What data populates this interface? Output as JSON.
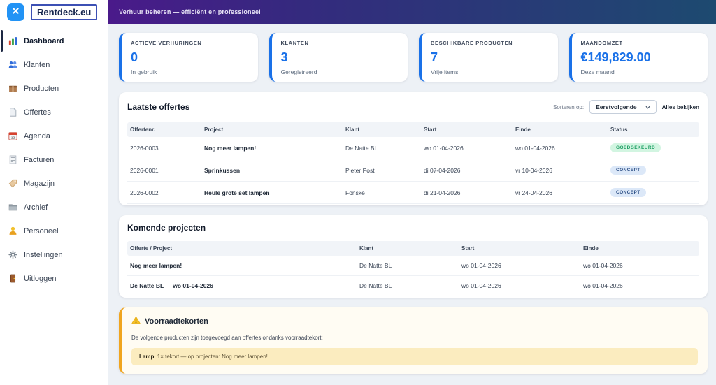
{
  "header": {
    "logo": "Rentdeck.eu",
    "tagline": "Verhuur beheren — efficiënt en professioneel",
    "close_icon": "close-icon"
  },
  "sidebar": {
    "items": [
      {
        "label": "Dashboard",
        "icon": "bar-chart-icon",
        "active": true
      },
      {
        "label": "Klanten",
        "icon": "people-icon"
      },
      {
        "label": "Producten",
        "icon": "package-icon"
      },
      {
        "label": "Offertes",
        "icon": "document-icon"
      },
      {
        "label": "Agenda",
        "icon": "calendar-icon"
      },
      {
        "label": "Facturen",
        "icon": "receipt-icon"
      },
      {
        "label": "Magazijn",
        "icon": "tag-icon"
      },
      {
        "label": "Archief",
        "icon": "folder-icon"
      },
      {
        "label": "Personeel",
        "icon": "person-icon"
      },
      {
        "label": "Instellingen",
        "icon": "gear-icon"
      },
      {
        "label": "Uitloggen",
        "icon": "door-icon"
      }
    ]
  },
  "stats": [
    {
      "label": "ACTIEVE VERHURINGEN",
      "value": "0",
      "sub": "In gebruik"
    },
    {
      "label": "KLANTEN",
      "value": "3",
      "sub": "Geregistreerd"
    },
    {
      "label": "BESCHIKBARE PRODUCTEN",
      "value": "7",
      "sub": "Vrije items"
    },
    {
      "label": "MAANDOMZET",
      "value": "€149,829.00",
      "sub": "Deze maand"
    }
  ],
  "offers": {
    "title": "Laatste offertes",
    "sort_label": "Sorteren op:",
    "sort_value": "Eerstvolgende",
    "view_all": "Alles bekijken",
    "columns": [
      "Offertenr.",
      "Project",
      "Klant",
      "Start",
      "Einde",
      "Status"
    ],
    "rows": [
      {
        "nr": "2026-0003",
        "project": "Nog meer lampen!",
        "klant": "De Natte BL",
        "start": "wo 01-04-2026",
        "einde": "wo 01-04-2026",
        "status": "GOEDGEKEURD",
        "status_type": "approved"
      },
      {
        "nr": "2026-0001",
        "project": "Sprinkussen",
        "klant": "Pieter Post",
        "start": "di 07-04-2026",
        "einde": "vr 10-04-2026",
        "status": "CONCEPT",
        "status_type": "concept"
      },
      {
        "nr": "2026-0002",
        "project": "Heule grote set lampen",
        "klant": "Fonske",
        "start": "di 21-04-2026",
        "einde": "vr 24-04-2026",
        "status": "CONCEPT",
        "status_type": "concept"
      }
    ]
  },
  "projects": {
    "title": "Komende projecten",
    "columns": [
      "Offerte / Project",
      "Klant",
      "Start",
      "Einde"
    ],
    "rows": [
      {
        "project": "Nog meer lampen!",
        "klant": "De Natte BL",
        "start": "wo 01-04-2026",
        "einde": "wo 01-04-2026"
      },
      {
        "project": "De Natte BL — wo 01-04-2026",
        "klant": "De Natte BL",
        "start": "wo 01-04-2026",
        "einde": "wo 01-04-2026"
      }
    ]
  },
  "warning": {
    "icon": "warning-icon",
    "title": "Voorraadtekorten",
    "text": "De volgende producten zijn toegevoegd aan offertes ondanks voorraadtekort:",
    "items": [
      {
        "product": "Lamp",
        "detail": ": 1× tekort — op projecten: Nog meer lampen!"
      }
    ]
  },
  "colors": {
    "accent_blue": "#1a71e8",
    "header_gradient_start": "#4a1a8a",
    "header_gradient_end": "#1d4a70",
    "close_button_blue": "#2293f5",
    "approved_bg": "#d2f5e1",
    "approved_text": "#1d9e63",
    "concept_bg": "#dce8f8",
    "concept_text": "#2c4f86",
    "warning_border": "#f0a51f",
    "warning_row_bg": "#fbecbf"
  }
}
